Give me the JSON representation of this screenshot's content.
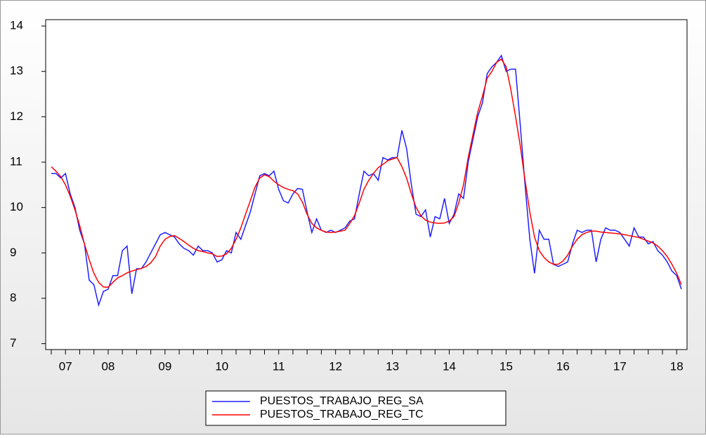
{
  "chart_data": {
    "type": "line",
    "categories": [
      null,
      null,
      null,
      "07",
      null,
      null,
      null,
      null,
      null,
      null,
      null,
      null,
      "08",
      null,
      null,
      null,
      null,
      null,
      null,
      null,
      null,
      null,
      null,
      null,
      "09",
      null,
      null,
      null,
      null,
      null,
      null,
      null,
      null,
      null,
      null,
      null,
      "10",
      null,
      null,
      null,
      null,
      null,
      null,
      null,
      null,
      null,
      null,
      null,
      "11",
      null,
      null,
      null,
      null,
      null,
      null,
      null,
      null,
      null,
      null,
      null,
      "12",
      null,
      null,
      null,
      null,
      null,
      null,
      null,
      null,
      null,
      null,
      null,
      "13",
      null,
      null,
      null,
      null,
      null,
      null,
      null,
      null,
      null,
      null,
      null,
      "14",
      null,
      null,
      null,
      null,
      null,
      null,
      null,
      null,
      null,
      null,
      null,
      "15",
      null,
      null,
      null,
      null,
      null,
      null,
      null,
      null,
      null,
      null,
      null,
      "16",
      null,
      null,
      null,
      null,
      null,
      null,
      null,
      null,
      null,
      null,
      null,
      "17",
      null,
      null,
      null,
      null,
      null,
      null,
      null,
      null,
      null,
      null,
      null,
      "18",
      null
    ],
    "series": [
      {
        "name": "PUESTOS_TRABAJO_REG_SA",
        "color": "#1f1fff",
        "values": [
          10.75,
          10.75,
          10.65,
          10.75,
          10.3,
          10.0,
          9.5,
          9.2,
          8.4,
          8.3,
          7.85,
          8.15,
          8.2,
          8.5,
          8.5,
          9.05,
          9.15,
          8.1,
          8.65,
          8.65,
          8.8,
          9.0,
          9.2,
          9.4,
          9.45,
          9.4,
          9.35,
          9.2,
          9.1,
          9.05,
          8.95,
          9.15,
          9.05,
          9.05,
          9.0,
          8.8,
          8.85,
          9.05,
          9.0,
          9.45,
          9.3,
          9.6,
          9.9,
          10.3,
          10.7,
          10.75,
          10.7,
          10.8,
          10.4,
          10.15,
          10.1,
          10.3,
          10.42,
          10.4,
          9.9,
          9.45,
          9.75,
          9.5,
          9.45,
          9.5,
          9.45,
          9.5,
          9.55,
          9.7,
          9.75,
          10.3,
          10.8,
          10.7,
          10.75,
          10.6,
          11.1,
          11.05,
          11.1,
          11.1,
          11.7,
          11.3,
          10.5,
          9.85,
          9.8,
          9.95,
          9.35,
          9.8,
          9.75,
          10.2,
          9.65,
          9.85,
          10.3,
          10.2,
          11.0,
          11.5,
          12.0,
          12.3,
          12.95,
          13.1,
          13.2,
          13.35,
          13.0,
          13.05,
          13.05,
          11.8,
          10.5,
          9.3,
          8.55,
          9.5,
          9.3,
          9.3,
          8.75,
          8.7,
          8.75,
          8.8,
          9.2,
          9.5,
          9.45,
          9.5,
          9.5,
          8.8,
          9.3,
          9.55,
          9.5,
          9.5,
          9.45,
          9.3,
          9.15,
          9.55,
          9.35,
          9.35,
          9.2,
          9.25,
          9.05,
          8.95,
          8.8,
          8.6,
          8.5,
          8.2
        ]
      },
      {
        "name": "PUESTOS_TRABAJO_REG_TC",
        "color": "#ff0000",
        "values": [
          10.9,
          10.8,
          10.68,
          10.5,
          10.25,
          9.95,
          9.6,
          9.2,
          8.85,
          8.55,
          8.35,
          8.25,
          8.24,
          8.35,
          8.45,
          8.5,
          8.56,
          8.6,
          8.63,
          8.66,
          8.7,
          8.78,
          8.92,
          9.15,
          9.3,
          9.36,
          9.38,
          9.32,
          9.25,
          9.17,
          9.1,
          9.05,
          9.03,
          9.0,
          8.98,
          8.92,
          8.93,
          8.98,
          9.1,
          9.3,
          9.55,
          9.85,
          10.15,
          10.45,
          10.65,
          10.72,
          10.68,
          10.58,
          10.5,
          10.44,
          10.4,
          10.37,
          10.3,
          10.12,
          9.85,
          9.65,
          9.55,
          9.5,
          9.46,
          9.45,
          9.46,
          9.48,
          9.5,
          9.65,
          9.82,
          10.1,
          10.4,
          10.6,
          10.75,
          10.88,
          10.95,
          11.03,
          11.07,
          11.1,
          10.9,
          10.65,
          10.3,
          10.0,
          9.82,
          9.72,
          9.68,
          9.66,
          9.65,
          9.66,
          9.7,
          9.8,
          10.1,
          10.5,
          11.1,
          11.6,
          12.1,
          12.45,
          12.85,
          13.0,
          13.2,
          13.27,
          13.1,
          12.6,
          12.0,
          11.35,
          10.6,
          9.9,
          9.35,
          9.05,
          8.9,
          8.8,
          8.75,
          8.75,
          8.82,
          8.95,
          9.15,
          9.3,
          9.4,
          9.45,
          9.48,
          9.48,
          9.46,
          9.45,
          9.44,
          9.43,
          9.42,
          9.4,
          9.38,
          9.36,
          9.34,
          9.3,
          9.26,
          9.22,
          9.15,
          9.05,
          8.92,
          8.75,
          8.55,
          8.3
        ]
      }
    ],
    "ylim": [
      6.87,
      14.14
    ],
    "yticks": [
      7,
      8,
      9,
      10,
      11,
      12,
      13,
      14
    ],
    "legend": "bottom"
  }
}
